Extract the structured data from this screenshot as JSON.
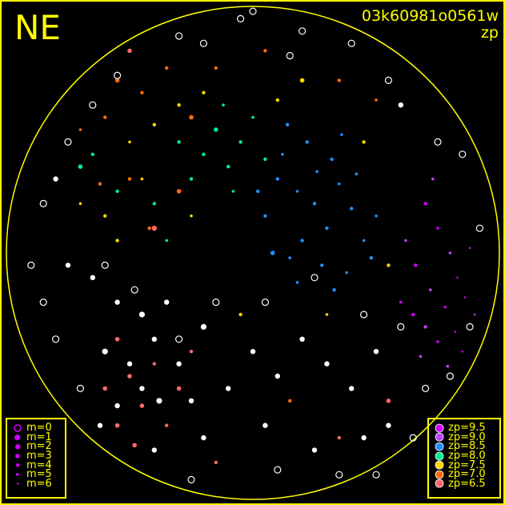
{
  "title_direction": "NE",
  "frame_id": "03k60981o0561w",
  "color_by": "zp",
  "colors": {
    "frame": "#ffff00",
    "background": "#000000",
    "no_zp": "#ffffff"
  },
  "mag_legend": [
    {
      "label": "m=0",
      "style": "ring"
    },
    {
      "label": "m=1"
    },
    {
      "label": "m=2"
    },
    {
      "label": "m=3"
    },
    {
      "label": "m=4"
    },
    {
      "label": "m=5"
    },
    {
      "label": "m=6"
    }
  ],
  "zp_legend": [
    {
      "label": "zp=9.5",
      "zp": 9.5,
      "color": "#d000ff"
    },
    {
      "label": "zp=9.0",
      "zp": 9.0,
      "color": "#c040ff"
    },
    {
      "label": "zp=8.5",
      "zp": 8.5,
      "color": "#2090ff"
    },
    {
      "label": "zp=8.0",
      "zp": 8.0,
      "color": "#00f090"
    },
    {
      "label": "zp=7.5",
      "zp": 7.5,
      "color": "#ffd800"
    },
    {
      "label": "zp=7.0",
      "zp": 7.0,
      "color": "#ff6a10"
    },
    {
      "label": "zp=6.5",
      "zp": 6.5,
      "color": "#ff6868"
    }
  ],
  "chart_data": {
    "type": "scatter",
    "projection": "all-sky circle",
    "legend": [
      "bottom-left (magnitude)",
      "bottom-right (zp color)"
    ],
    "points_fields": [
      "x",
      "y",
      "zp",
      "m"
    ],
    "points": [
      [
        0.7,
        -0.2,
        9.5,
        4
      ],
      [
        0.75,
        -0.1,
        9.5,
        5
      ],
      [
        0.8,
        0.0,
        9.0,
        5
      ],
      [
        0.66,
        0.05,
        9.5,
        4
      ],
      [
        0.83,
        0.1,
        9.5,
        6
      ],
      [
        0.72,
        0.15,
        9.0,
        5
      ],
      [
        0.78,
        0.22,
        9.5,
        5
      ],
      [
        0.86,
        0.18,
        9.5,
        6
      ],
      [
        0.7,
        0.3,
        9.0,
        4
      ],
      [
        0.75,
        0.36,
        9.5,
        5
      ],
      [
        0.82,
        0.32,
        9.5,
        6
      ],
      [
        0.68,
        0.42,
        9.0,
        5
      ],
      [
        0.62,
        -0.05,
        9.0,
        5
      ],
      [
        0.88,
        -0.02,
        9.5,
        6
      ],
      [
        0.6,
        0.2,
        9.5,
        5
      ],
      [
        0.73,
        -0.3,
        9.0,
        5
      ],
      [
        0.85,
        0.4,
        9.5,
        6
      ],
      [
        0.79,
        0.46,
        9.0,
        5
      ],
      [
        0.65,
        0.25,
        9.5,
        4
      ],
      [
        0.9,
        0.25,
        9.0,
        6
      ],
      [
        0.1,
        -0.3,
        8.5,
        4
      ],
      [
        0.18,
        -0.25,
        8.5,
        5
      ],
      [
        0.25,
        -0.2,
        8.5,
        4
      ],
      [
        0.3,
        -0.1,
        8.5,
        4
      ],
      [
        0.35,
        -0.28,
        8.5,
        5
      ],
      [
        0.4,
        -0.18,
        8.5,
        4
      ],
      [
        0.45,
        -0.05,
        8.5,
        5
      ],
      [
        0.2,
        -0.05,
        8.5,
        4
      ],
      [
        0.15,
        0.02,
        8.5,
        5
      ],
      [
        0.28,
        0.05,
        8.5,
        4
      ],
      [
        0.38,
        0.08,
        8.5,
        5
      ],
      [
        0.5,
        -0.15,
        8.5,
        5
      ],
      [
        0.05,
        -0.15,
        8.5,
        4
      ],
      [
        0.12,
        -0.4,
        8.5,
        5
      ],
      [
        0.22,
        -0.45,
        8.5,
        4
      ],
      [
        0.32,
        -0.38,
        8.5,
        4
      ],
      [
        0.42,
        -0.32,
        8.5,
        5
      ],
      [
        0.08,
        0.0,
        8.5,
        3
      ],
      [
        0.33,
        0.15,
        8.5,
        4
      ],
      [
        0.18,
        0.12,
        8.5,
        5
      ],
      [
        0.48,
        0.02,
        8.5,
        4
      ],
      [
        0.26,
        -0.33,
        8.5,
        5
      ],
      [
        0.02,
        -0.25,
        8.5,
        4
      ],
      [
        0.36,
        -0.48,
        8.5,
        5
      ],
      [
        0.14,
        -0.52,
        8.5,
        4
      ],
      [
        -0.05,
        -0.45,
        8.0,
        4
      ],
      [
        -0.1,
        -0.35,
        8.0,
        4
      ],
      [
        -0.15,
        -0.5,
        8.0,
        3
      ],
      [
        -0.2,
        -0.4,
        8.0,
        4
      ],
      [
        0.0,
        -0.55,
        8.0,
        5
      ],
      [
        -0.25,
        -0.3,
        8.0,
        4
      ],
      [
        -0.08,
        -0.25,
        8.0,
        5
      ],
      [
        -0.3,
        -0.45,
        8.0,
        4
      ],
      [
        0.05,
        -0.38,
        8.0,
        4
      ],
      [
        -0.12,
        -0.6,
        8.0,
        5
      ],
      [
        -0.7,
        -0.35,
        8.0,
        3
      ],
      [
        -0.65,
        -0.4,
        8.0,
        4
      ],
      [
        -0.4,
        -0.2,
        8.0,
        4
      ],
      [
        -0.35,
        -0.05,
        8.0,
        5
      ],
      [
        -0.55,
        -0.25,
        8.0,
        4
      ],
      [
        -0.3,
        -0.6,
        7.5,
        4
      ],
      [
        -0.4,
        -0.52,
        7.5,
        4
      ],
      [
        -0.5,
        -0.45,
        7.5,
        5
      ],
      [
        -0.2,
        -0.65,
        7.5,
        4
      ],
      [
        0.1,
        -0.62,
        7.5,
        4
      ],
      [
        -0.6,
        -0.15,
        7.5,
        4
      ],
      [
        -0.45,
        -0.3,
        7.5,
        5
      ],
      [
        -0.55,
        -0.05,
        7.5,
        4
      ],
      [
        -0.25,
        -0.15,
        7.5,
        5
      ],
      [
        0.2,
        -0.7,
        7.5,
        3
      ],
      [
        0.45,
        -0.45,
        7.5,
        4
      ],
      [
        -0.7,
        -0.2,
        7.5,
        5
      ],
      [
        0.3,
        0.25,
        7.5,
        5
      ],
      [
        0.55,
        0.05,
        7.5,
        4
      ],
      [
        -0.05,
        0.25,
        7.5,
        4
      ],
      [
        -0.55,
        -0.7,
        7.0,
        3
      ],
      [
        -0.45,
        -0.65,
        7.0,
        4
      ],
      [
        -0.35,
        -0.75,
        7.0,
        4
      ],
      [
        -0.25,
        -0.55,
        7.0,
        3
      ],
      [
        -0.6,
        -0.55,
        7.0,
        4
      ],
      [
        -0.15,
        -0.75,
        7.0,
        4
      ],
      [
        -0.5,
        -0.3,
        7.0,
        4
      ],
      [
        -0.3,
        -0.25,
        7.0,
        3
      ],
      [
        -0.62,
        -0.28,
        7.0,
        4
      ],
      [
        -0.42,
        -0.1,
        7.0,
        4
      ],
      [
        0.05,
        -0.82,
        7.0,
        4
      ],
      [
        0.35,
        -0.7,
        7.0,
        4
      ],
      [
        0.5,
        -0.62,
        7.0,
        5
      ],
      [
        -0.7,
        -0.5,
        7.0,
        5
      ],
      [
        0.15,
        0.6,
        7.0,
        4
      ],
      [
        -0.55,
        0.35,
        6.5,
        3
      ],
      [
        -0.5,
        0.5,
        6.5,
        3
      ],
      [
        -0.45,
        0.62,
        6.5,
        3
      ],
      [
        -0.4,
        0.45,
        6.5,
        4
      ],
      [
        -0.6,
        0.55,
        6.5,
        3
      ],
      [
        -0.55,
        0.7,
        6.5,
        3
      ],
      [
        -0.35,
        0.7,
        6.5,
        4
      ],
      [
        -0.3,
        0.55,
        6.5,
        3
      ],
      [
        -0.25,
        0.4,
        6.5,
        4
      ],
      [
        -0.48,
        0.78,
        6.5,
        3
      ],
      [
        -0.5,
        -0.82,
        6.5,
        3
      ],
      [
        -0.4,
        -0.1,
        6.5,
        2
      ],
      [
        0.35,
        0.75,
        6.5,
        4
      ],
      [
        0.55,
        0.6,
        6.5,
        3
      ],
      [
        -0.15,
        0.85,
        6.5,
        4
      ],
      [
        -0.65,
        0.1,
        null,
        2
      ],
      [
        -0.55,
        0.2,
        null,
        2
      ],
      [
        -0.45,
        0.25,
        null,
        1
      ],
      [
        -0.4,
        0.35,
        null,
        2
      ],
      [
        -0.35,
        0.2,
        null,
        2
      ],
      [
        -0.6,
        0.4,
        null,
        1
      ],
      [
        -0.5,
        0.45,
        null,
        2
      ],
      [
        -0.45,
        0.55,
        null,
        2
      ],
      [
        -0.38,
        0.6,
        null,
        1
      ],
      [
        -0.55,
        0.62,
        null,
        2
      ],
      [
        -0.3,
        0.45,
        null,
        2
      ],
      [
        -0.25,
        0.6,
        null,
        2
      ],
      [
        -0.2,
        0.3,
        null,
        1
      ],
      [
        -0.62,
        0.7,
        null,
        2
      ],
      [
        -0.4,
        0.8,
        null,
        2
      ],
      [
        -0.2,
        0.75,
        null,
        2
      ],
      [
        -0.1,
        0.55,
        null,
        2
      ],
      [
        0.0,
        0.4,
        null,
        2
      ],
      [
        0.1,
        0.5,
        null,
        2
      ],
      [
        0.2,
        0.35,
        null,
        2
      ],
      [
        0.3,
        0.45,
        null,
        2
      ],
      [
        0.4,
        0.55,
        null,
        2
      ],
      [
        0.5,
        0.4,
        null,
        2
      ],
      [
        0.55,
        0.7,
        null,
        2
      ],
      [
        0.45,
        0.75,
        null,
        2
      ],
      [
        0.25,
        0.8,
        null,
        2
      ],
      [
        0.05,
        0.7,
        null,
        2
      ],
      [
        -0.75,
        0.05,
        null,
        2
      ],
      [
        -0.8,
        -0.3,
        null,
        2
      ],
      [
        0.6,
        -0.6,
        null,
        2
      ],
      [
        0.7,
        0.55,
        null,
        0
      ],
      [
        0.6,
        0.3,
        null,
        0
      ],
      [
        0.75,
        -0.45,
        null,
        0
      ],
      [
        0.85,
        -0.4,
        null,
        0
      ],
      [
        0.55,
        -0.7,
        null,
        0
      ],
      [
        0.4,
        -0.85,
        null,
        0
      ],
      [
        0.2,
        -0.9,
        null,
        0
      ],
      [
        -0.05,
        -0.95,
        null,
        0
      ],
      [
        -0.3,
        -0.88,
        null,
        0
      ],
      [
        -0.55,
        -0.72,
        null,
        0
      ],
      [
        -0.75,
        -0.45,
        null,
        0
      ],
      [
        -0.85,
        -0.2,
        null,
        0
      ],
      [
        -0.9,
        0.05,
        null,
        0
      ],
      [
        -0.8,
        0.35,
        null,
        0
      ],
      [
        -0.7,
        0.55,
        null,
        0
      ],
      [
        -0.85,
        0.2,
        null,
        0
      ],
      [
        -0.6,
        0.05,
        null,
        0
      ],
      [
        -0.48,
        0.15,
        null,
        0
      ],
      [
        -0.3,
        0.35,
        null,
        0
      ],
      [
        -0.15,
        0.2,
        null,
        0
      ],
      [
        0.05,
        0.2,
        null,
        0
      ],
      [
        0.25,
        0.1,
        null,
        0
      ],
      [
        0.45,
        0.25,
        null,
        0
      ],
      [
        0.35,
        0.9,
        null,
        0
      ],
      [
        0.1,
        0.88,
        null,
        0
      ],
      [
        -0.25,
        0.92,
        null,
        0
      ],
      [
        0.65,
        0.75,
        null,
        0
      ],
      [
        0.8,
        0.5,
        null,
        0
      ],
      [
        0.92,
        -0.1,
        null,
        0
      ],
      [
        0.88,
        0.3,
        null,
        0
      ],
      [
        0.0,
        -0.98,
        null,
        0
      ],
      [
        0.15,
        -0.8,
        null,
        0
      ],
      [
        -0.2,
        -0.85,
        null,
        0
      ],
      [
        -0.65,
        -0.6,
        null,
        0
      ],
      [
        0.5,
        0.9,
        null,
        0
      ]
    ]
  }
}
